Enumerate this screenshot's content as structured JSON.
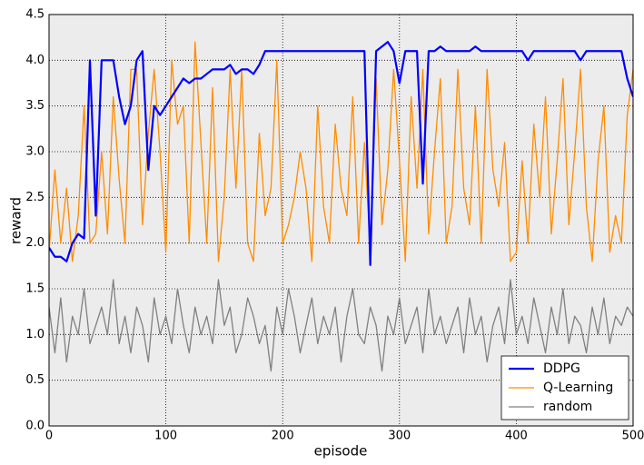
{
  "chart_data": {
    "type": "line",
    "xlabel": "episode",
    "ylabel": "reward",
    "x": [
      0,
      5,
      10,
      15,
      20,
      25,
      30,
      35,
      40,
      45,
      50,
      55,
      60,
      65,
      70,
      75,
      80,
      85,
      90,
      95,
      100,
      105,
      110,
      115,
      120,
      125,
      130,
      135,
      140,
      145,
      150,
      155,
      160,
      165,
      170,
      175,
      180,
      185,
      190,
      195,
      200,
      205,
      210,
      215,
      220,
      225,
      230,
      235,
      240,
      245,
      250,
      255,
      260,
      265,
      270,
      275,
      280,
      285,
      290,
      295,
      300,
      305,
      310,
      315,
      320,
      325,
      330,
      335,
      340,
      345,
      350,
      355,
      360,
      365,
      370,
      375,
      380,
      385,
      390,
      395,
      400,
      405,
      410,
      415,
      420,
      425,
      430,
      435,
      440,
      445,
      450,
      455,
      460,
      465,
      470,
      475,
      480,
      485,
      490,
      495,
      500
    ],
    "series": [
      {
        "name": "DDPG",
        "color": "#0000ff",
        "width": 2.2,
        "values": [
          1.95,
          1.85,
          1.85,
          1.8,
          2.0,
          2.1,
          2.05,
          4.0,
          2.3,
          4.0,
          4.0,
          4.0,
          3.6,
          3.3,
          3.5,
          4.0,
          4.1,
          2.8,
          3.5,
          3.4,
          3.5,
          3.6,
          3.7,
          3.8,
          3.75,
          3.8,
          3.8,
          3.85,
          3.9,
          3.9,
          3.9,
          3.95,
          3.85,
          3.9,
          3.9,
          3.85,
          3.95,
          4.1,
          4.1,
          4.1,
          4.1,
          4.1,
          4.1,
          4.1,
          4.1,
          4.1,
          4.1,
          4.1,
          4.1,
          4.1,
          4.1,
          4.1,
          4.1,
          4.1,
          4.1,
          1.76,
          4.1,
          4.15,
          4.2,
          4.1,
          3.75,
          4.1,
          4.1,
          4.1,
          2.65,
          4.1,
          4.1,
          4.15,
          4.1,
          4.1,
          4.1,
          4.1,
          4.1,
          4.15,
          4.1,
          4.1,
          4.1,
          4.1,
          4.1,
          4.1,
          4.1,
          4.1,
          4.0,
          4.1,
          4.1,
          4.1,
          4.1,
          4.1,
          4.1,
          4.1,
          4.1,
          4.0,
          4.1,
          4.1,
          4.1,
          4.1,
          4.1,
          4.1,
          4.1,
          3.8,
          3.6
        ]
      },
      {
        "name": "Q-Learning",
        "color": "#ff8c00",
        "width": 1.3,
        "values": [
          1.9,
          2.8,
          2.0,
          2.6,
          1.8,
          2.3,
          3.5,
          2.0,
          2.1,
          3.0,
          2.1,
          3.6,
          2.7,
          2.0,
          3.9,
          3.9,
          2.2,
          3.2,
          3.9,
          3.0,
          1.9,
          4.0,
          3.3,
          3.5,
          2.0,
          4.2,
          3.1,
          2.0,
          3.7,
          1.8,
          2.5,
          3.9,
          2.6,
          3.9,
          2.0,
          1.8,
          3.2,
          2.3,
          2.6,
          4.0,
          2.0,
          2.2,
          2.5,
          3.0,
          2.6,
          1.8,
          3.5,
          2.4,
          2.0,
          3.3,
          2.6,
          2.3,
          3.6,
          2.0,
          3.1,
          1.9,
          3.8,
          2.2,
          2.8,
          3.9,
          2.9,
          1.8,
          3.6,
          2.6,
          3.9,
          2.1,
          3.0,
          3.8,
          2.0,
          2.4,
          3.9,
          2.6,
          2.2,
          3.5,
          2.0,
          3.9,
          2.8,
          2.4,
          3.1,
          1.8,
          1.9,
          2.9,
          2.0,
          3.3,
          2.5,
          3.6,
          2.1,
          2.9,
          3.8,
          2.2,
          3.0,
          3.9,
          2.4,
          1.8,
          2.9,
          3.5,
          1.9,
          2.3,
          2.0,
          3.4,
          3.9
        ]
      },
      {
        "name": "random",
        "color": "#808080",
        "width": 1.3,
        "values": [
          1.3,
          0.8,
          1.4,
          0.7,
          1.2,
          1.0,
          1.5,
          0.9,
          1.1,
          1.3,
          1.0,
          1.6,
          0.9,
          1.2,
          0.8,
          1.3,
          1.1,
          0.7,
          1.4,
          1.0,
          1.2,
          0.9,
          1.5,
          1.1,
          0.8,
          1.3,
          1.0,
          1.2,
          0.9,
          1.6,
          1.1,
          1.3,
          0.8,
          1.0,
          1.4,
          1.2,
          0.9,
          1.1,
          0.6,
          1.3,
          1.0,
          1.5,
          1.2,
          0.8,
          1.1,
          1.4,
          0.9,
          1.2,
          1.0,
          1.3,
          0.7,
          1.2,
          1.5,
          1.0,
          0.9,
          1.3,
          1.1,
          0.6,
          1.2,
          1.0,
          1.4,
          0.9,
          1.1,
          1.3,
          0.8,
          1.5,
          1.0,
          1.2,
          0.9,
          1.1,
          1.3,
          0.8,
          1.4,
          1.0,
          1.2,
          0.7,
          1.1,
          1.3,
          0.9,
          1.6,
          1.0,
          1.2,
          0.9,
          1.4,
          1.1,
          0.8,
          1.3,
          1.0,
          1.5,
          0.9,
          1.2,
          1.1,
          0.8,
          1.3,
          1.0,
          1.4,
          0.9,
          1.2,
          1.1,
          1.3,
          1.2
        ]
      }
    ],
    "xlim": [
      0,
      500
    ],
    "xticks": [
      0,
      100,
      200,
      300,
      400,
      500
    ],
    "ylim": [
      0,
      4.5
    ],
    "yticks": [
      {
        "value": 0,
        "label": "0.0"
      },
      0.5,
      {
        "value": 1,
        "label": "1.0"
      },
      1.5,
      {
        "value": 2,
        "label": "2.0"
      },
      2.5,
      {
        "value": 3,
        "label": "3.0"
      },
      3.5,
      {
        "value": 4,
        "label": "4.0"
      },
      4.5
    ],
    "grid": true,
    "legend": "lower right",
    "background": "#ececec"
  }
}
